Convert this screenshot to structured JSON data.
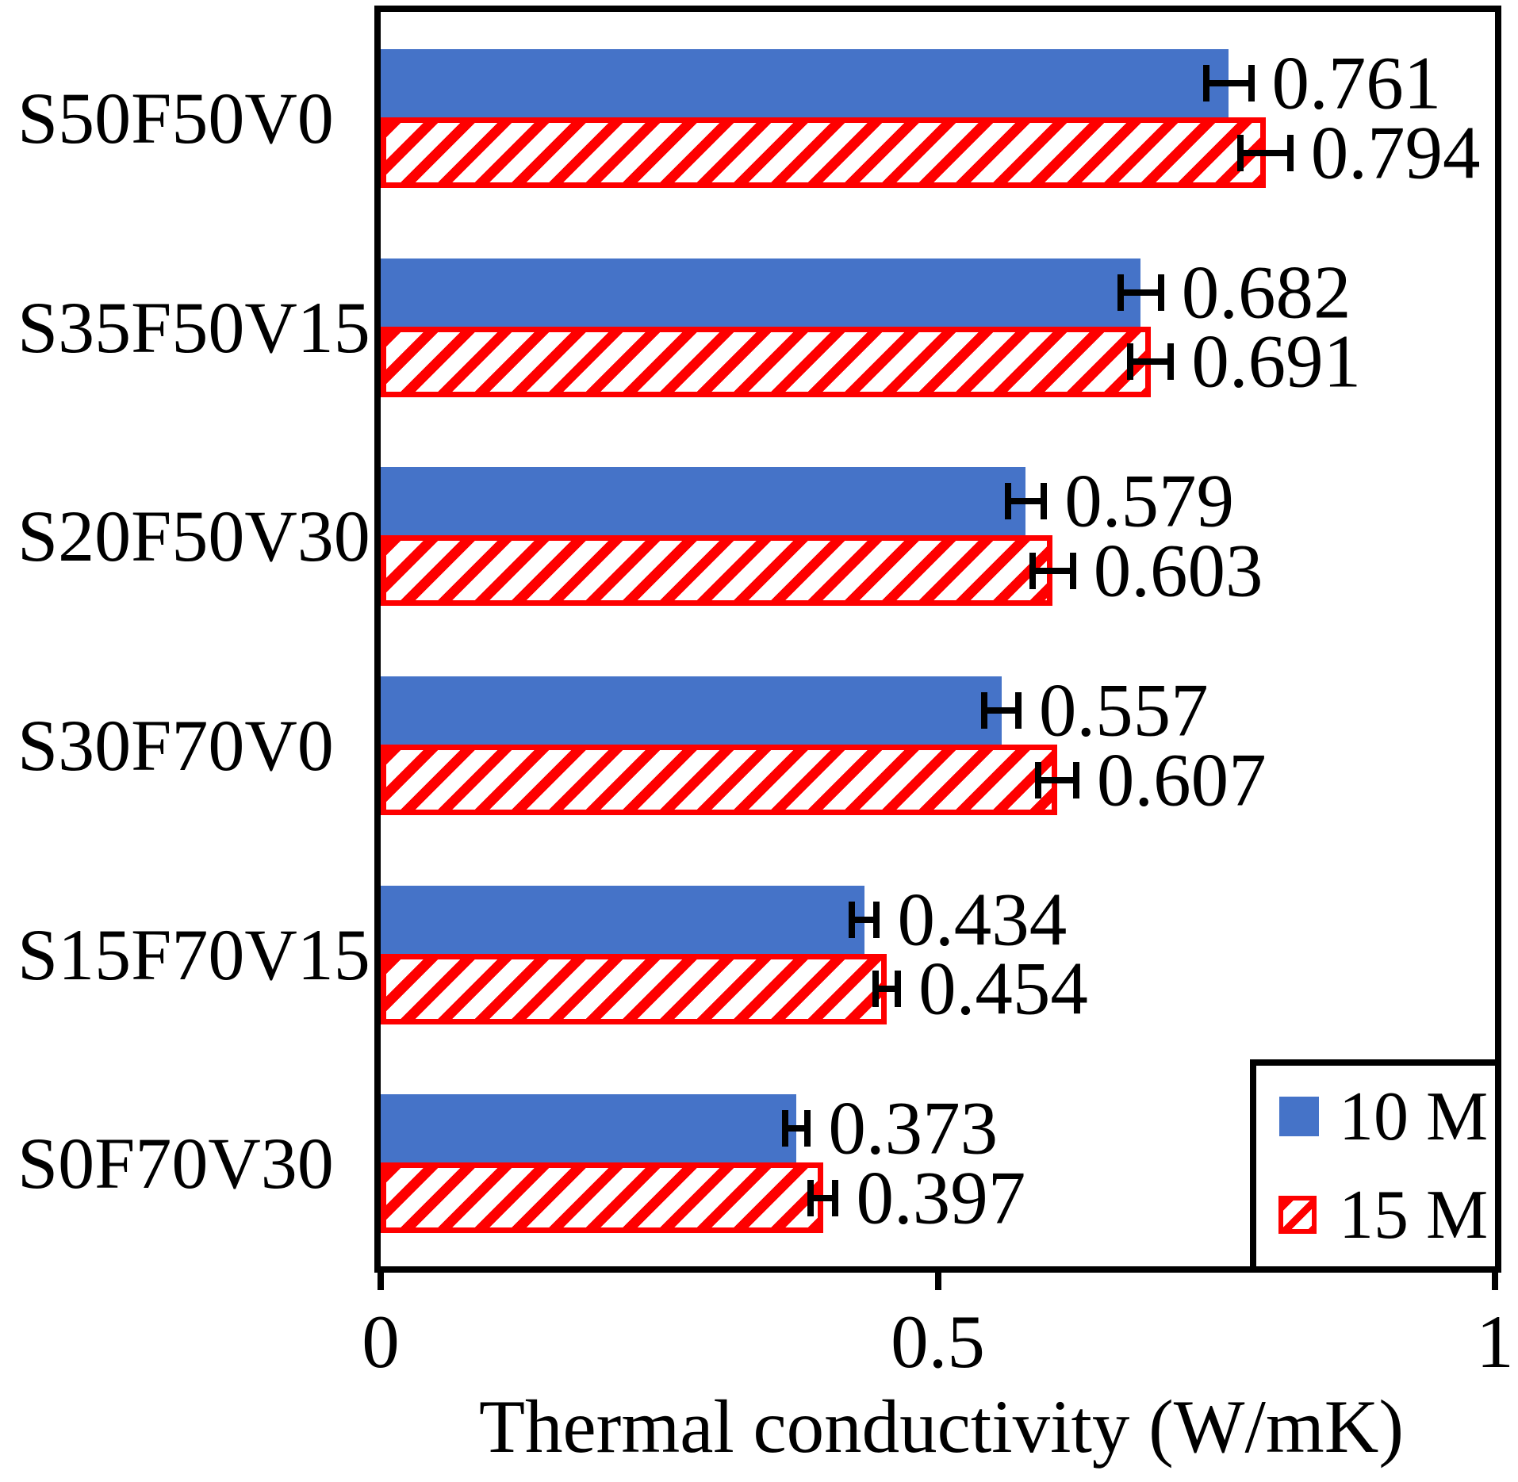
{
  "chart_data": {
    "type": "bar",
    "orientation": "horizontal",
    "title": "",
    "xlabel": "Thermal conductivity (W/mK)",
    "ylabel": "",
    "xlim": [
      0,
      1
    ],
    "xticks": [
      0,
      0.5,
      1
    ],
    "xtick_labels": [
      "0",
      "0.5",
      "1"
    ],
    "grid": "off",
    "legend_position": "bottom-right",
    "value_labels": true,
    "categories": [
      "S50F50V0",
      "S35F50V15",
      "S20F50V30",
      "S30F70V0",
      "S15F70V15",
      "S0F70V30"
    ],
    "series": [
      {
        "name": "10 M",
        "style": "solid",
        "color": "#4573C8",
        "values": [
          0.761,
          0.682,
          0.579,
          0.557,
          0.434,
          0.373
        ],
        "errors": [
          0.023,
          0.021,
          0.019,
          0.018,
          0.014,
          0.013
        ],
        "value_label_texts": [
          "0.761",
          "0.682",
          "0.579",
          "0.557",
          "0.434",
          "0.373"
        ]
      },
      {
        "name": "15 M",
        "style": "red-diagonal-hatch",
        "color": "#FE0000",
        "values": [
          0.794,
          0.691,
          0.603,
          0.607,
          0.454,
          0.397
        ],
        "errors": [
          0.025,
          0.021,
          0.021,
          0.02,
          0.013,
          0.014
        ],
        "value_label_texts": [
          "0.794",
          "0.691",
          "0.603",
          "0.607",
          "0.454",
          "0.397"
        ]
      }
    ]
  },
  "colors": {
    "bar_blue": "#4573C8",
    "bar_red": "#FE0000",
    "axis": "#000000",
    "background": "#FFFFFF",
    "text": "#000000"
  },
  "legend": {
    "items": [
      {
        "label": "10 M",
        "swatch": "blue-solid-square"
      },
      {
        "label": "15 M",
        "swatch": "red-hatched-square"
      }
    ]
  }
}
